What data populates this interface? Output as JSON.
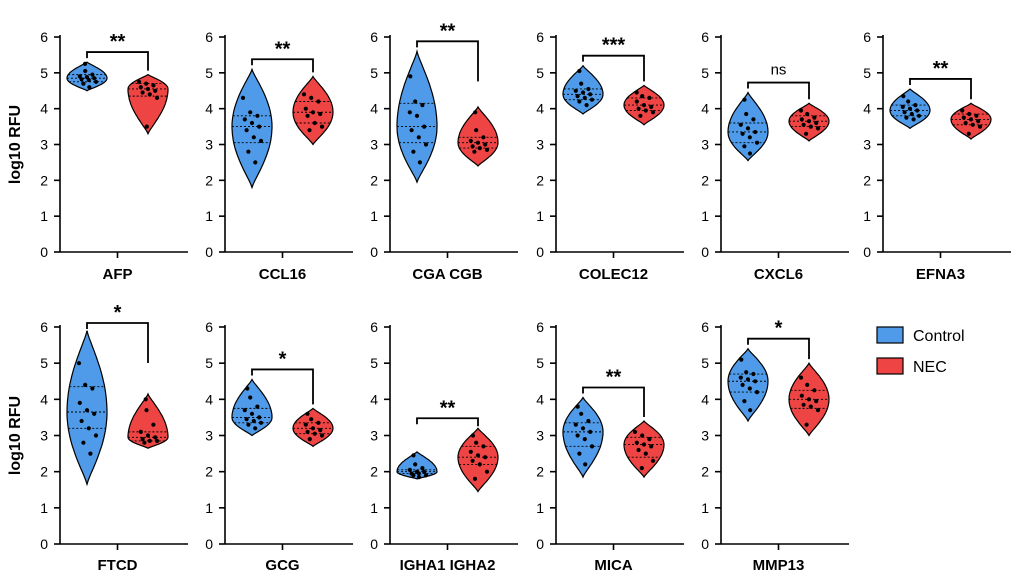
{
  "colors": {
    "control": "#4f9be9",
    "nec": "#ee4444"
  },
  "legend": [
    {
      "label": "Control",
      "color": "#4f9be9"
    },
    {
      "label": "NEC",
      "color": "#ee4444"
    }
  ],
  "y_axis_label": "log10 RFU",
  "chart_data": [
    {
      "type": "violin",
      "category": "AFP",
      "ylim": [
        0,
        6
      ],
      "yticks": [
        0,
        1,
        2,
        3,
        4,
        5,
        6
      ],
      "ylabel": "log10 RFU",
      "significance": "**",
      "series": [
        {
          "name": "Control",
          "min": 4.5,
          "max": 5.3,
          "q1": 4.75,
          "median": 4.85,
          "q3": 4.95,
          "points": [
            5.25,
            5.05,
            4.95,
            4.9,
            4.88,
            4.85,
            4.82,
            4.8,
            4.75,
            4.7,
            4.6
          ]
        },
        {
          "name": "NEC",
          "min": 3.3,
          "max": 4.95,
          "q1": 4.35,
          "median": 4.55,
          "q3": 4.7,
          "points": [
            4.75,
            4.7,
            4.65,
            4.6,
            4.55,
            4.5,
            4.45,
            4.4,
            4.3,
            3.5
          ]
        }
      ]
    },
    {
      "category": "CCL16",
      "ylim": [
        0,
        6
      ],
      "yticks": [
        0,
        1,
        2,
        3,
        4,
        5,
        6
      ],
      "ylabel": "",
      "significance": "**",
      "series": [
        {
          "name": "Control",
          "min": 1.8,
          "max": 5.1,
          "q1": 3.05,
          "median": 3.5,
          "q3": 3.8,
          "points": [
            4.3,
            3.9,
            3.8,
            3.7,
            3.6,
            3.5,
            3.4,
            3.2,
            3.1,
            2.8,
            2.5
          ]
        },
        {
          "name": "NEC",
          "min": 3.0,
          "max": 4.9,
          "q1": 3.6,
          "median": 3.9,
          "q3": 4.2,
          "points": [
            4.4,
            4.3,
            4.2,
            4.0,
            3.9,
            3.85,
            3.8,
            3.6,
            3.5,
            3.4
          ]
        }
      ]
    },
    {
      "category": "CGA CGB",
      "ylim": [
        0,
        6
      ],
      "yticks": [
        0,
        1,
        2,
        3,
        4,
        5,
        6
      ],
      "ylabel": "",
      "significance": "**",
      "series": [
        {
          "name": "Control",
          "min": 1.95,
          "max": 5.6,
          "q1": 3.05,
          "median": 3.5,
          "q3": 4.15,
          "points": [
            4.9,
            4.2,
            4.1,
            3.9,
            3.8,
            3.5,
            3.4,
            3.2,
            3.0,
            2.8,
            2.5
          ]
        },
        {
          "name": "NEC",
          "min": 2.4,
          "max": 4.05,
          "q1": 2.9,
          "median": 3.05,
          "q3": 3.2,
          "points": [
            3.9,
            3.4,
            3.2,
            3.1,
            3.05,
            3.0,
            2.95,
            2.9,
            2.85,
            2.8
          ]
        }
      ]
    },
    {
      "category": "COLEC12",
      "ylim": [
        0,
        6
      ],
      "yticks": [
        0,
        1,
        2,
        3,
        4,
        5,
        6
      ],
      "ylabel": "",
      "significance": "***",
      "series": [
        {
          "name": "Control",
          "min": 3.85,
          "max": 5.2,
          "q1": 4.25,
          "median": 4.4,
          "q3": 4.55,
          "points": [
            5.05,
            4.7,
            4.55,
            4.5,
            4.45,
            4.4,
            4.35,
            4.3,
            4.25,
            4.2,
            4.1
          ]
        },
        {
          "name": "NEC",
          "min": 3.55,
          "max": 4.65,
          "q1": 3.95,
          "median": 4.1,
          "q3": 4.3,
          "points": [
            4.45,
            4.35,
            4.3,
            4.2,
            4.1,
            4.05,
            4.0,
            3.95,
            3.9,
            3.8
          ]
        }
      ]
    },
    {
      "category": "CXCL6",
      "ylim": [
        0,
        6
      ],
      "yticks": [
        0,
        1,
        2,
        3,
        4,
        5,
        6
      ],
      "ylabel": "",
      "significance": "ns",
      "series": [
        {
          "name": "Control",
          "min": 2.55,
          "max": 4.45,
          "q1": 3.05,
          "median": 3.35,
          "q3": 3.6,
          "points": [
            4.25,
            3.85,
            3.7,
            3.55,
            3.45,
            3.35,
            3.3,
            3.2,
            3.05,
            2.95,
            2.75
          ]
        },
        {
          "name": "NEC",
          "min": 3.1,
          "max": 4.15,
          "q1": 3.5,
          "median": 3.65,
          "q3": 3.8,
          "points": [
            3.95,
            3.85,
            3.75,
            3.7,
            3.65,
            3.6,
            3.55,
            3.5,
            3.45,
            3.3
          ]
        }
      ]
    },
    {
      "category": "EFNA3",
      "ylim": [
        0,
        6
      ],
      "yticks": [
        0,
        1,
        2,
        3,
        4,
        5,
        6
      ],
      "ylabel": "",
      "significance": "**",
      "series": [
        {
          "name": "Control",
          "min": 3.45,
          "max": 4.55,
          "q1": 3.8,
          "median": 3.95,
          "q3": 4.1,
          "points": [
            4.35,
            4.2,
            4.1,
            4.05,
            4.0,
            3.95,
            3.9,
            3.85,
            3.8,
            3.75,
            3.7
          ]
        },
        {
          "name": "NEC",
          "min": 3.15,
          "max": 4.15,
          "q1": 3.55,
          "median": 3.7,
          "q3": 3.85,
          "points": [
            3.95,
            3.85,
            3.8,
            3.75,
            3.7,
            3.65,
            3.6,
            3.55,
            3.5,
            3.3
          ]
        }
      ]
    },
    {
      "category": "FTCD",
      "ylim": [
        0,
        6
      ],
      "yticks": [
        0,
        1,
        2,
        3,
        4,
        5,
        6
      ],
      "ylabel": "log10 RFU",
      "significance": "*",
      "series": [
        {
          "name": "Control",
          "min": 1.65,
          "max": 5.9,
          "q1": 3.2,
          "median": 3.65,
          "q3": 4.35,
          "points": [
            5.0,
            4.4,
            4.3,
            3.9,
            3.7,
            3.6,
            3.4,
            3.2,
            3.0,
            2.8,
            2.5
          ]
        },
        {
          "name": "NEC",
          "min": 2.65,
          "max": 4.15,
          "q1": 2.85,
          "median": 2.95,
          "q3": 3.1,
          "points": [
            4.0,
            3.7,
            3.3,
            3.1,
            3.0,
            2.95,
            2.9,
            2.85,
            2.85,
            2.8
          ]
        }
      ]
    },
    {
      "category": "GCG",
      "ylim": [
        0,
        6
      ],
      "yticks": [
        0,
        1,
        2,
        3,
        4,
        5,
        6
      ],
      "ylabel": "",
      "significance": "*",
      "series": [
        {
          "name": "Control",
          "min": 3.0,
          "max": 4.55,
          "q1": 3.35,
          "median": 3.5,
          "q3": 3.75,
          "points": [
            4.3,
            4.05,
            3.8,
            3.7,
            3.6,
            3.5,
            3.45,
            3.4,
            3.35,
            3.3,
            3.2
          ]
        },
        {
          "name": "NEC",
          "min": 2.7,
          "max": 3.75,
          "q1": 3.05,
          "median": 3.2,
          "q3": 3.35,
          "points": [
            3.6,
            3.45,
            3.35,
            3.3,
            3.2,
            3.15,
            3.1,
            3.05,
            3.0,
            2.9
          ]
        }
      ]
    },
    {
      "category": "IGHA1 IGHA2",
      "ylim": [
        0,
        6
      ],
      "yticks": [
        0,
        1,
        2,
        3,
        4,
        5,
        6
      ],
      "ylabel": "",
      "significance": "**",
      "series": [
        {
          "name": "Control",
          "min": 1.8,
          "max": 2.55,
          "q1": 1.95,
          "median": 2.0,
          "q3": 2.05,
          "points": [
            2.45,
            2.2,
            2.1,
            2.05,
            2.0,
            2.0,
            1.95,
            1.95,
            1.9,
            1.9,
            1.85
          ]
        },
        {
          "name": "NEC",
          "min": 1.45,
          "max": 3.2,
          "q1": 2.2,
          "median": 2.4,
          "q3": 2.7,
          "points": [
            3.0,
            2.8,
            2.7,
            2.55,
            2.45,
            2.4,
            2.3,
            2.2,
            2.0,
            1.8
          ]
        }
      ]
    },
    {
      "category": "MICA",
      "ylim": [
        0,
        6
      ],
      "yticks": [
        0,
        1,
        2,
        3,
        4,
        5,
        6
      ],
      "ylabel": "",
      "significance": "**",
      "series": [
        {
          "name": "Control",
          "min": 1.85,
          "max": 4.05,
          "q1": 2.7,
          "median": 3.1,
          "q3": 3.35,
          "points": [
            3.8,
            3.6,
            3.4,
            3.3,
            3.2,
            3.1,
            3.0,
            2.9,
            2.7,
            2.5,
            2.2
          ]
        },
        {
          "name": "NEC",
          "min": 1.85,
          "max": 3.4,
          "q1": 2.4,
          "median": 2.75,
          "q3": 2.95,
          "points": [
            3.1,
            3.0,
            2.9,
            2.8,
            2.75,
            2.7,
            2.6,
            2.5,
            2.3,
            2.1
          ]
        }
      ]
    },
    {
      "category": "MMP13",
      "ylim": [
        0,
        6
      ],
      "yticks": [
        0,
        1,
        2,
        3,
        4,
        5,
        6
      ],
      "ylabel": "",
      "significance": "*",
      "series": [
        {
          "name": "Control",
          "min": 3.4,
          "max": 5.4,
          "q1": 4.2,
          "median": 4.5,
          "q3": 4.7,
          "points": [
            5.1,
            4.75,
            4.7,
            4.6,
            4.55,
            4.5,
            4.4,
            4.3,
            4.2,
            3.95,
            3.7
          ]
        },
        {
          "name": "NEC",
          "min": 3.0,
          "max": 5.0,
          "q1": 3.75,
          "median": 4.0,
          "q3": 4.25,
          "points": [
            4.6,
            4.4,
            4.25,
            4.1,
            4.0,
            3.95,
            3.85,
            3.8,
            3.7,
            3.3
          ]
        }
      ]
    }
  ]
}
